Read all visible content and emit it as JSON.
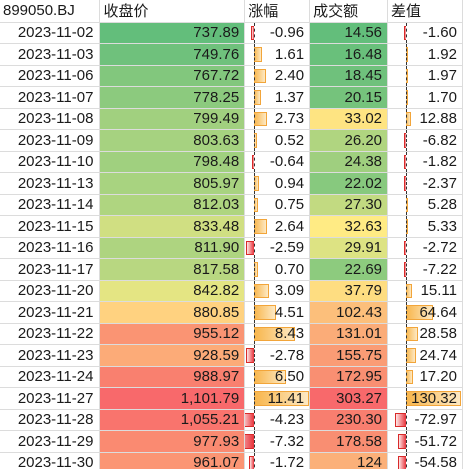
{
  "headers": [
    "899050.BJ",
    "收盘价",
    "涨幅",
    "成交额",
    "差值"
  ],
  "rows": [
    {
      "date": "2023-11-02",
      "close": "737.89",
      "change": "-0.96",
      "amount": "14.56",
      "diff": "-1.60",
      "close_bg": "#63be7b",
      "amount_bg": "#63be7b"
    },
    {
      "date": "2023-11-03",
      "close": "749.76",
      "change": "1.61",
      "amount": "16.48",
      "diff": "1.92",
      "close_bg": "#6fc17c",
      "amount_bg": "#69c07b"
    },
    {
      "date": "2023-11-06",
      "close": "767.72",
      "change": "2.40",
      "amount": "18.45",
      "diff": "1.97",
      "close_bg": "#82c77d",
      "amount_bg": "#6fc17c"
    },
    {
      "date": "2023-11-07",
      "close": "778.25",
      "change": "1.37",
      "amount": "20.15",
      "diff": "1.70",
      "close_bg": "#8cca7e",
      "amount_bg": "#75c37c"
    },
    {
      "date": "2023-11-08",
      "close": "799.49",
      "change": "2.73",
      "amount": "33.02",
      "diff": "12.88",
      "close_bg": "#a1d07f",
      "amount_bg": "#fee482"
    },
    {
      "date": "2023-11-09",
      "close": "803.63",
      "change": "0.52",
      "amount": "26.20",
      "diff": "-6.82",
      "close_bg": "#a6d280",
      "amount_bg": "#b0d580"
    },
    {
      "date": "2023-11-10",
      "close": "798.48",
      "change": "-0.64",
      "amount": "24.38",
      "diff": "-1.82",
      "close_bg": "#a0d07f",
      "amount_bg": "#9fcf7f"
    },
    {
      "date": "2023-11-13",
      "close": "805.97",
      "change": "0.94",
      "amount": "22.02",
      "diff": "-2.37",
      "close_bg": "#a8d380",
      "amount_bg": "#87c97e"
    },
    {
      "date": "2023-11-14",
      "close": "812.03",
      "change": "0.75",
      "amount": "27.30",
      "diff": "5.28",
      "close_bg": "#afd580",
      "amount_bg": "#c2da81"
    },
    {
      "date": "2023-11-15",
      "close": "833.48",
      "change": "2.64",
      "amount": "32.63",
      "diff": "5.33",
      "close_bg": "#d0df82",
      "amount_bg": "#ffeb84"
    },
    {
      "date": "2023-11-16",
      "close": "811.90",
      "change": "-2.59",
      "amount": "29.91",
      "diff": "-2.72",
      "close_bg": "#aed480",
      "amount_bg": "#dde383"
    },
    {
      "date": "2023-11-17",
      "close": "817.58",
      "change": "0.70",
      "amount": "22.69",
      "diff": "-7.22",
      "close_bg": "#b8d781",
      "amount_bg": "#8dcb7e"
    },
    {
      "date": "2023-11-20",
      "close": "842.82",
      "change": "3.09",
      "amount": "37.79",
      "diff": "15.11",
      "close_bg": "#e4e583",
      "amount_bg": "#fedd81"
    },
    {
      "date": "2023-11-21",
      "close": "880.85",
      "change": "4.51",
      "amount": "102.43",
      "diff": "64.64",
      "close_bg": "#ffd280",
      "amount_bg": "#fcbf7b"
    },
    {
      "date": "2023-11-22",
      "close": "955.12",
      "change": "8.43",
      "amount": "131.01",
      "diff": "28.58",
      "close_bg": "#fa9473",
      "amount_bg": "#fbac78"
    },
    {
      "date": "2023-11-23",
      "close": "928.59",
      "change": "-2.78",
      "amount": "155.75",
      "diff": "24.74",
      "close_bg": "#fcab78",
      "amount_bg": "#fa9c75"
    },
    {
      "date": "2023-11-24",
      "close": "988.97",
      "change": "6.50",
      "amount": "172.95",
      "diff": "17.20",
      "close_bg": "#f9806f",
      "amount_bg": "#f98f72"
    },
    {
      "date": "2023-11-27",
      "close": "1,101.79",
      "change": "11.41",
      "amount": "303.27",
      "diff": "130.32",
      "close_bg": "#f8696b",
      "amount_bg": "#f8696b"
    },
    {
      "date": "2023-11-28",
      "close": "1,055.21",
      "change": "-4.23",
      "amount": "230.30",
      "diff": "-72.97",
      "close_bg": "#f9746d",
      "amount_bg": "#f87e6f"
    },
    {
      "date": "2023-11-29",
      "close": "977.93",
      "change": "-7.32",
      "amount": "178.58",
      "diff": "-51.72",
      "close_bg": "#fa8a71",
      "amount_bg": "#f98e72"
    },
    {
      "date": "2023-11-30",
      "close": "961.07",
      "change": "-1.72",
      "amount": "124",
      "diff": "-54.58",
      "close_bg": "#fb9574",
      "amount_bg": "#fbb079"
    }
  ],
  "colors": {
    "pos_bar": "#f8b54a",
    "neg_bar": "#e8323a",
    "grid": "#dcdcdc"
  }
}
